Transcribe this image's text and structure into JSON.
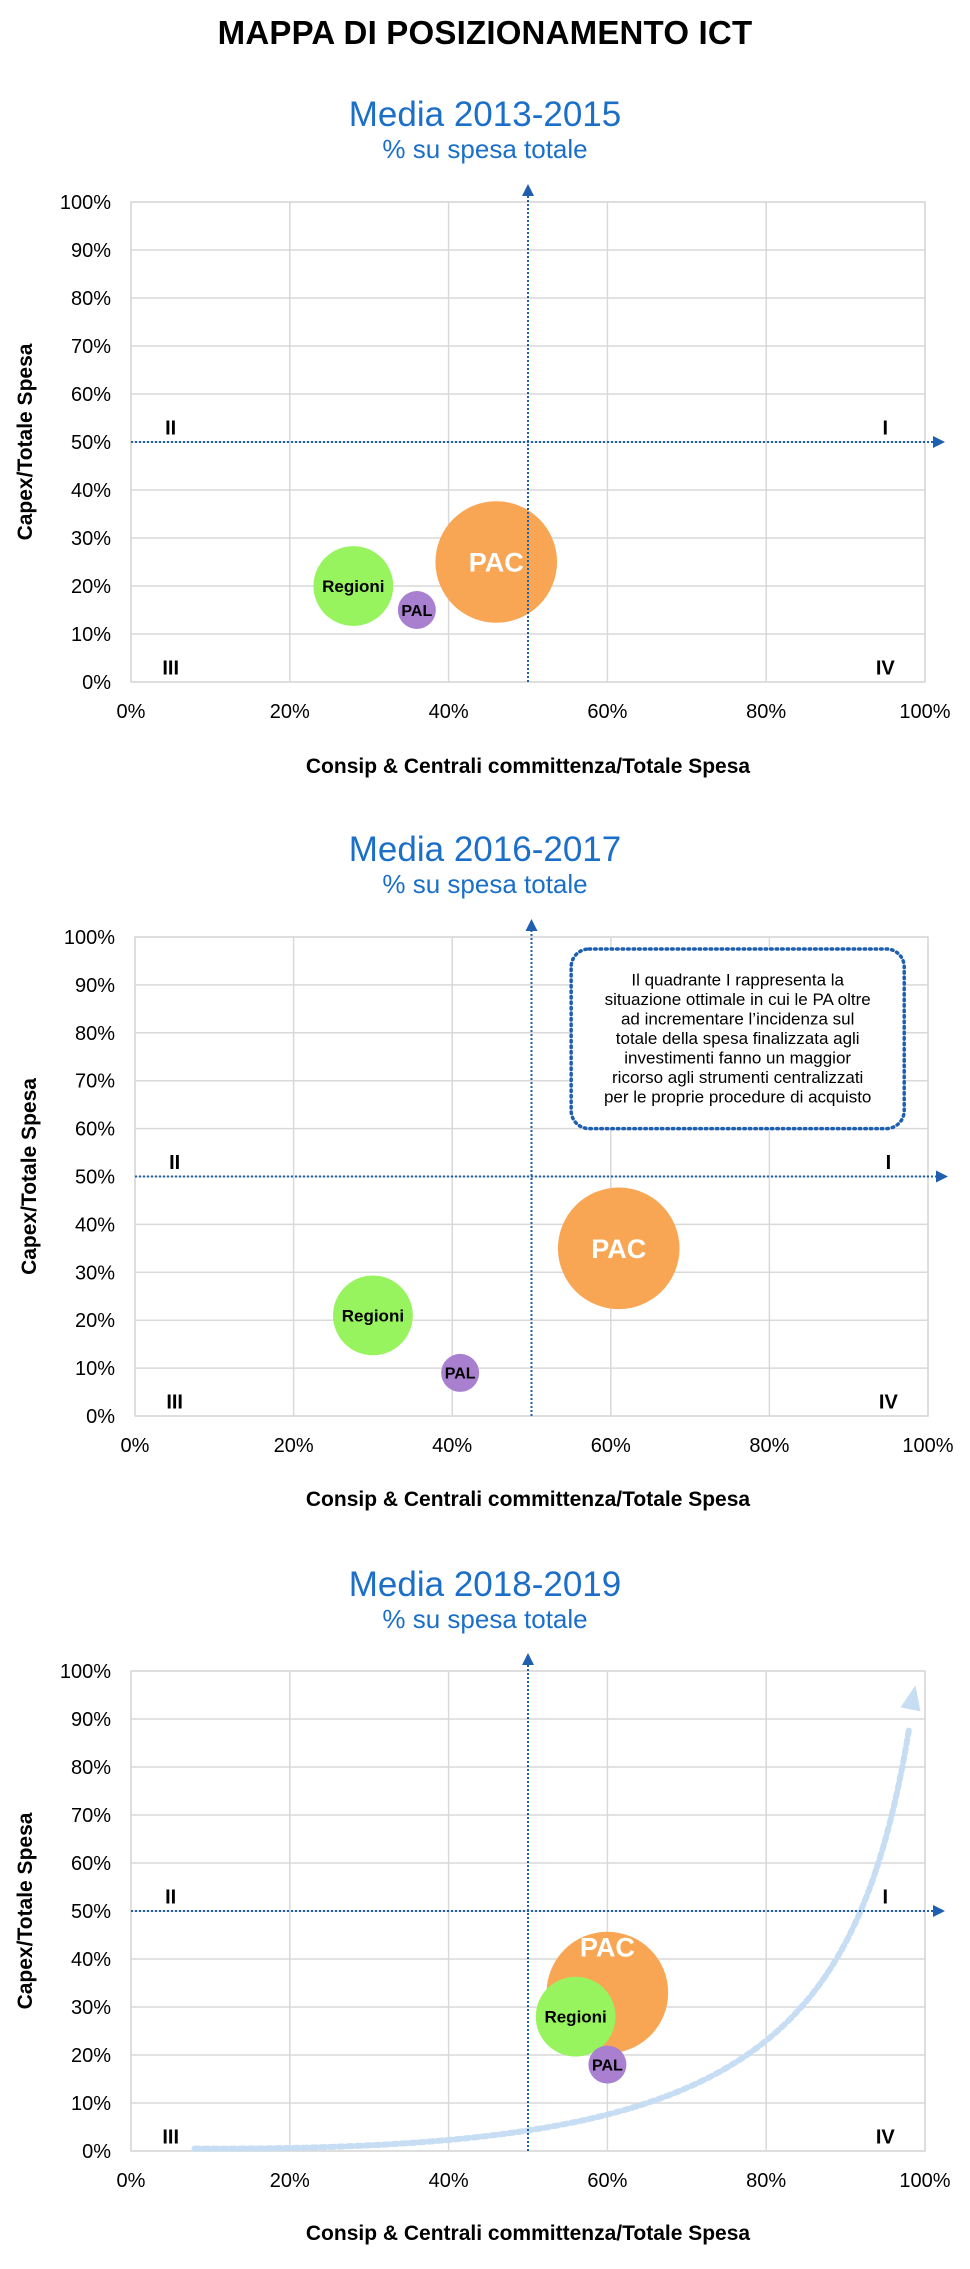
{
  "page_title": "MAPPA DI POSIZIONAMENTO ICT",
  "colors": {
    "title_blue": "#1B6FC8",
    "axis_blue": "#1F5FAF",
    "grid": "#D9D9D9",
    "pac": "#F9A654",
    "regioni": "#97F45F",
    "pal": "#A97FCF",
    "trend": "#C6DDF3"
  },
  "chart_data": [
    {
      "type": "scatter",
      "title": "Media 2013-2015",
      "subtitle": "% su spesa totale",
      "xlabel": "Consip & Centrali committenza/Totale Spesa",
      "ylabel": "Capex/Totale Spesa",
      "xlim": [
        0,
        100
      ],
      "ylim": [
        0,
        100
      ],
      "x_ticks": [
        "0%",
        "20%",
        "40%",
        "60%",
        "80%",
        "100%"
      ],
      "y_ticks": [
        "0%",
        "10%",
        "20%",
        "30%",
        "40%",
        "50%",
        "60%",
        "70%",
        "80%",
        "90%",
        "100%"
      ],
      "grid": true,
      "quadrant_lines": {
        "x": 50,
        "y": 50
      },
      "quadrant_labels": [
        "I",
        "II",
        "III",
        "IV"
      ],
      "series": [
        {
          "name": "PAC",
          "x": 46,
          "y": 25,
          "size": 3.2,
          "color": "#F9A654"
        },
        {
          "name": "Regioni",
          "x": 28,
          "y": 20,
          "size": 2.1,
          "color": "#97F45F"
        },
        {
          "name": "PAL",
          "x": 36,
          "y": 15,
          "size": 1.0,
          "color": "#A97FCF"
        }
      ]
    },
    {
      "type": "scatter",
      "title": "Media 2016-2017",
      "subtitle": "% su spesa totale",
      "xlabel": "Consip & Centrali committenza/Totale Spesa",
      "ylabel": "Capex/Totale Spesa",
      "xlim": [
        0,
        100
      ],
      "ylim": [
        0,
        100
      ],
      "x_ticks": [
        "0%",
        "20%",
        "40%",
        "60%",
        "80%",
        "100%"
      ],
      "y_ticks": [
        "0%",
        "10%",
        "20%",
        "30%",
        "40%",
        "50%",
        "60%",
        "70%",
        "80%",
        "90%",
        "100%"
      ],
      "grid": true,
      "quadrant_lines": {
        "x": 50,
        "y": 50
      },
      "quadrant_labels": [
        "I",
        "II",
        "III",
        "IV"
      ],
      "annotation": {
        "lines": [
          "Il quadrante I rappresenta la",
          "situazione ottimale in cui le PA oltre",
          "ad incrementare l’incidenza sul",
          "totale della spesa finalizzata agli",
          "investimenti fanno un maggior",
          "ricorso agli strumenti centralizzati",
          "per le proprie procedure di acquisto"
        ]
      },
      "series": [
        {
          "name": "PAC",
          "x": 61,
          "y": 35,
          "size": 3.2,
          "color": "#F9A654"
        },
        {
          "name": "Regioni",
          "x": 30,
          "y": 21,
          "size": 2.1,
          "color": "#97F45F"
        },
        {
          "name": "PAL",
          "x": 41,
          "y": 9,
          "size": 1.0,
          "color": "#A97FCF"
        }
      ]
    },
    {
      "type": "scatter",
      "title": "Media 2018-2019",
      "subtitle": "% su spesa totale",
      "xlabel": "Consip & Centrali committenza/Totale Spesa",
      "ylabel": "Capex/Totale Spesa",
      "xlim": [
        0,
        100
      ],
      "ylim": [
        0,
        100
      ],
      "x_ticks": [
        "0%",
        "20%",
        "40%",
        "60%",
        "80%",
        "100%"
      ],
      "y_ticks": [
        "0%",
        "10%",
        "20%",
        "30%",
        "40%",
        "50%",
        "60%",
        "70%",
        "80%",
        "90%",
        "100%"
      ],
      "grid": true,
      "quadrant_lines": {
        "x": 50,
        "y": 50
      },
      "quadrant_labels": [
        "I",
        "II",
        "III",
        "IV"
      ],
      "trend_arrow": true,
      "series": [
        {
          "name": "PAC",
          "x": 60,
          "y": 33,
          "size": 3.2,
          "color": "#F9A654"
        },
        {
          "name": "Regioni",
          "x": 56,
          "y": 28,
          "size": 2.1,
          "color": "#97F45F"
        },
        {
          "name": "PAL",
          "x": 60,
          "y": 18,
          "size": 1.0,
          "color": "#A97FCF"
        }
      ]
    }
  ]
}
